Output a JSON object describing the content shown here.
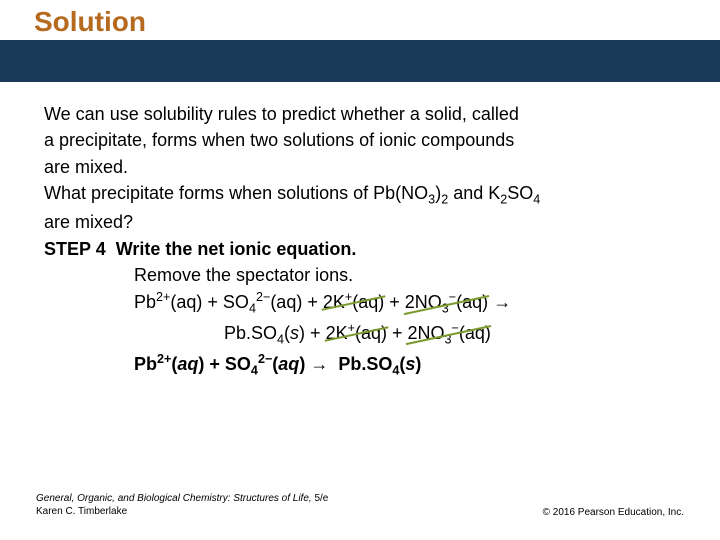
{
  "title": "Solution",
  "title_color": "#b66a1f",
  "band_color": "#1a3a5a",
  "body": {
    "intro_l1": "We can use solubility rules to predict whether a solid, called",
    "intro_l2": "a precipitate, forms when two solutions of ionic compounds",
    "intro_l3": "are mixed.",
    "q_l1_a": "What precipitate forms when solutions of Pb(NO",
    "q_l1_b": " and K",
    "q_l1_c": "SO",
    "q_l2": "are mixed?",
    "step_label": "STEP 4",
    "step_title": "Write the net ionic equation.",
    "step_sub": "Remove the spectator ions.",
    "eq1_pb": "Pb",
    "eq1_aq": "(aq)",
    "eq1_so4": "SO",
    "eq1_k": "2K",
    "eq1_no3": "2NO",
    "eq1_arrow": "→",
    "eq2_pbso4": "Pb.SO",
    "eq2_s": "(s)",
    "net_pb": "Pb",
    "net_so4": "SO",
    "net_pbso4": "Pb.SO",
    "plus": " + "
  },
  "footer": {
    "book_title": "General, Organic, and Biological Chemistry: Structures of Life,",
    "edition": " 5/e",
    "author": "Karen C. Timberlake",
    "copyright": "© 2016 Pearson Education, Inc."
  },
  "strike_color": "#7a9a2e"
}
